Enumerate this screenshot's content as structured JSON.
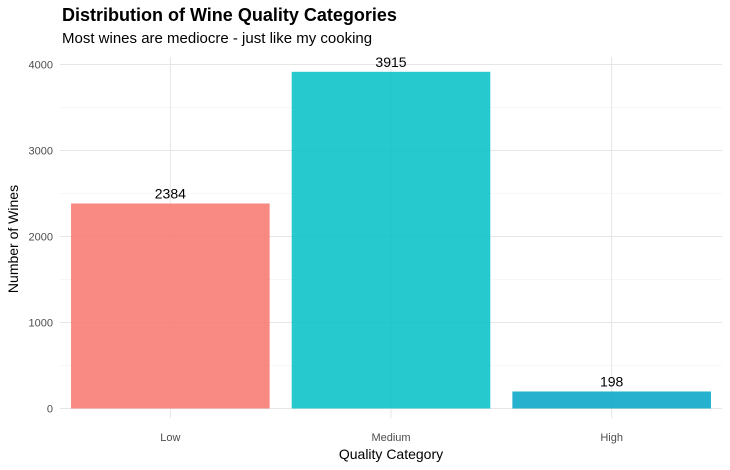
{
  "chart_data": {
    "type": "bar",
    "title": "Distribution of Wine Quality Categories",
    "subtitle": "Most wines are mediocre - just like my cooking",
    "xlabel": "Quality Category",
    "ylabel": "Number of Wines",
    "categories": [
      "Low",
      "Medium",
      "High"
    ],
    "values": [
      2384,
      3915,
      198
    ],
    "data_labels": [
      "2384",
      "3915",
      "198"
    ],
    "colors": [
      "#F8766D",
      "#00BFC4",
      "#00A5C6"
    ],
    "ylim": [
      0,
      4000
    ],
    "yticks": [
      0,
      1000,
      2000,
      3000,
      4000
    ],
    "ytick_labels": [
      "0",
      "1000",
      "2000",
      "3000",
      "4000"
    ],
    "grid": true,
    "legend": "none"
  }
}
